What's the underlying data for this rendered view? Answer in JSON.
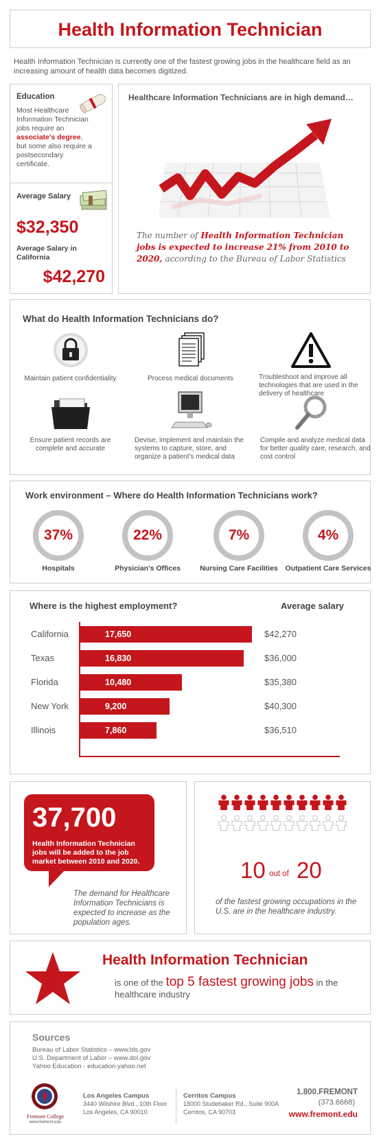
{
  "header": {
    "title": "Health Information Technician"
  },
  "intro": "Health Information Technician is currently one of the fastest growing jobs in the healthcare field as an increasing amount of health data becomes digitized.",
  "education": {
    "title": "Education",
    "text_before": "Most Healthcare Information Technician jobs require an",
    "highlight": "associate's degree",
    "text_after": ", but some also require a postsecondary certificate."
  },
  "salary": {
    "title": "Average Salary",
    "value": "$32,350",
    "ca_title": "Average Salary in California",
    "ca_value": "$42,270"
  },
  "demand": {
    "title": "Healthcare Information Technicians are in high demand…",
    "quote_1": "The number of",
    "quote_highlight": "Health Information Technician jobs is expected to increase 21% from 2010 to 2020,",
    "quote_2": "according to the Bureau of Labor Statistics"
  },
  "duties": {
    "title": "What do Health Information Technicians do?",
    "items": [
      {
        "icon": "lock-icon",
        "label": "Maintain patient confidentiality"
      },
      {
        "icon": "documents-icon",
        "label": "Process medical documents"
      },
      {
        "icon": "warning-icon",
        "label": "Troubleshoot and improve all technologies that are used in the delivery of healthcare"
      },
      {
        "icon": "folder-icon",
        "label": "Ensure patient records are complete and accurate"
      },
      {
        "icon": "computer-icon",
        "label": "Devise, implement and maintain the systems to capture, store, and organize a patient's medical data"
      },
      {
        "icon": "magnifier-icon",
        "label": "Compile and analyze medical data for better quality care, research, and cost control"
      }
    ]
  },
  "environment": {
    "title": "Work environment – Where do Health Information Technicians work?",
    "items": [
      {
        "value": "37%",
        "label": "Hospitals"
      },
      {
        "value": "22%",
        "label": "Physician's Offices"
      },
      {
        "value": "7%",
        "label": "Nursing Care Facilities"
      },
      {
        "value": "4%",
        "label": "Outpatient Care Services"
      }
    ]
  },
  "employment": {
    "title": "Where is the highest employment?",
    "salary_title": "Average salary",
    "rows": [
      {
        "state": "California",
        "jobs": 17650,
        "jobs_label": "17,650",
        "salary": "$42,270"
      },
      {
        "state": "Texas",
        "jobs": 16830,
        "jobs_label": "16,830",
        "salary": "$36,000"
      },
      {
        "state": "Florida",
        "jobs": 10480,
        "jobs_label": "10,480",
        "salary": "$35,380"
      },
      {
        "state": "New York",
        "jobs": 9200,
        "jobs_label": "9,200",
        "salary": "$40,300"
      },
      {
        "state": "Illinois",
        "jobs": 7860,
        "jobs_label": "7,860",
        "salary": "$36,510"
      }
    ]
  },
  "chart_data": {
    "type": "bar",
    "title": "Where is the highest employment?",
    "categories": [
      "California",
      "Texas",
      "Florida",
      "New York",
      "Illinois"
    ],
    "values": [
      17650,
      16830,
      10480,
      9200,
      7860
    ],
    "orientation": "horizontal"
  },
  "jobs_added": {
    "number": "37,700",
    "text": "Health Information Technician jobs will be added to the job market between 2010 and 2020.",
    "note": "The demand for Healthcare Information Technicians is expected to increase as the population ages."
  },
  "growing": {
    "count_red": 10,
    "count_total": 20,
    "big_left": "10",
    "out_of": "out of",
    "big_right": "20",
    "text": "of the fastest growing occupations in the U.S. are in the healthcare industry."
  },
  "top5": {
    "title": "Health Information Technician",
    "pre": "is one of the",
    "highlight": "top 5 fastest growing jobs",
    "post": "in the healthcare industry"
  },
  "sources": {
    "title": "Sources",
    "items": [
      "Bureau of Labor Statistics – www.bls.gov",
      "U.S. Department of Labor – www.dol.gov",
      "Yahoo Education - education.yahoo.net"
    ]
  },
  "footer": {
    "logo_name": "Fremont College",
    "logo_url": "www.fremont.edu",
    "la_title": "Los Angeles Campus",
    "la_line1": "3440 Wilshire Blvd., 10th Floor",
    "la_line2": "Los Angeles, CA  90010",
    "cer_title": "Cerritos Campus",
    "cer_line1": "18000 Studebaker Rd., Suite 900A",
    "cer_line2": "Cerritos, CA   90703",
    "phone": "1.800.FREMONT",
    "phone_num": "(373.6668)",
    "website": "www.fremont.edu"
  },
  "colors": {
    "accent": "#c4161c",
    "grey_ring": "#c3c3c3",
    "border": "#cfcfcf"
  }
}
